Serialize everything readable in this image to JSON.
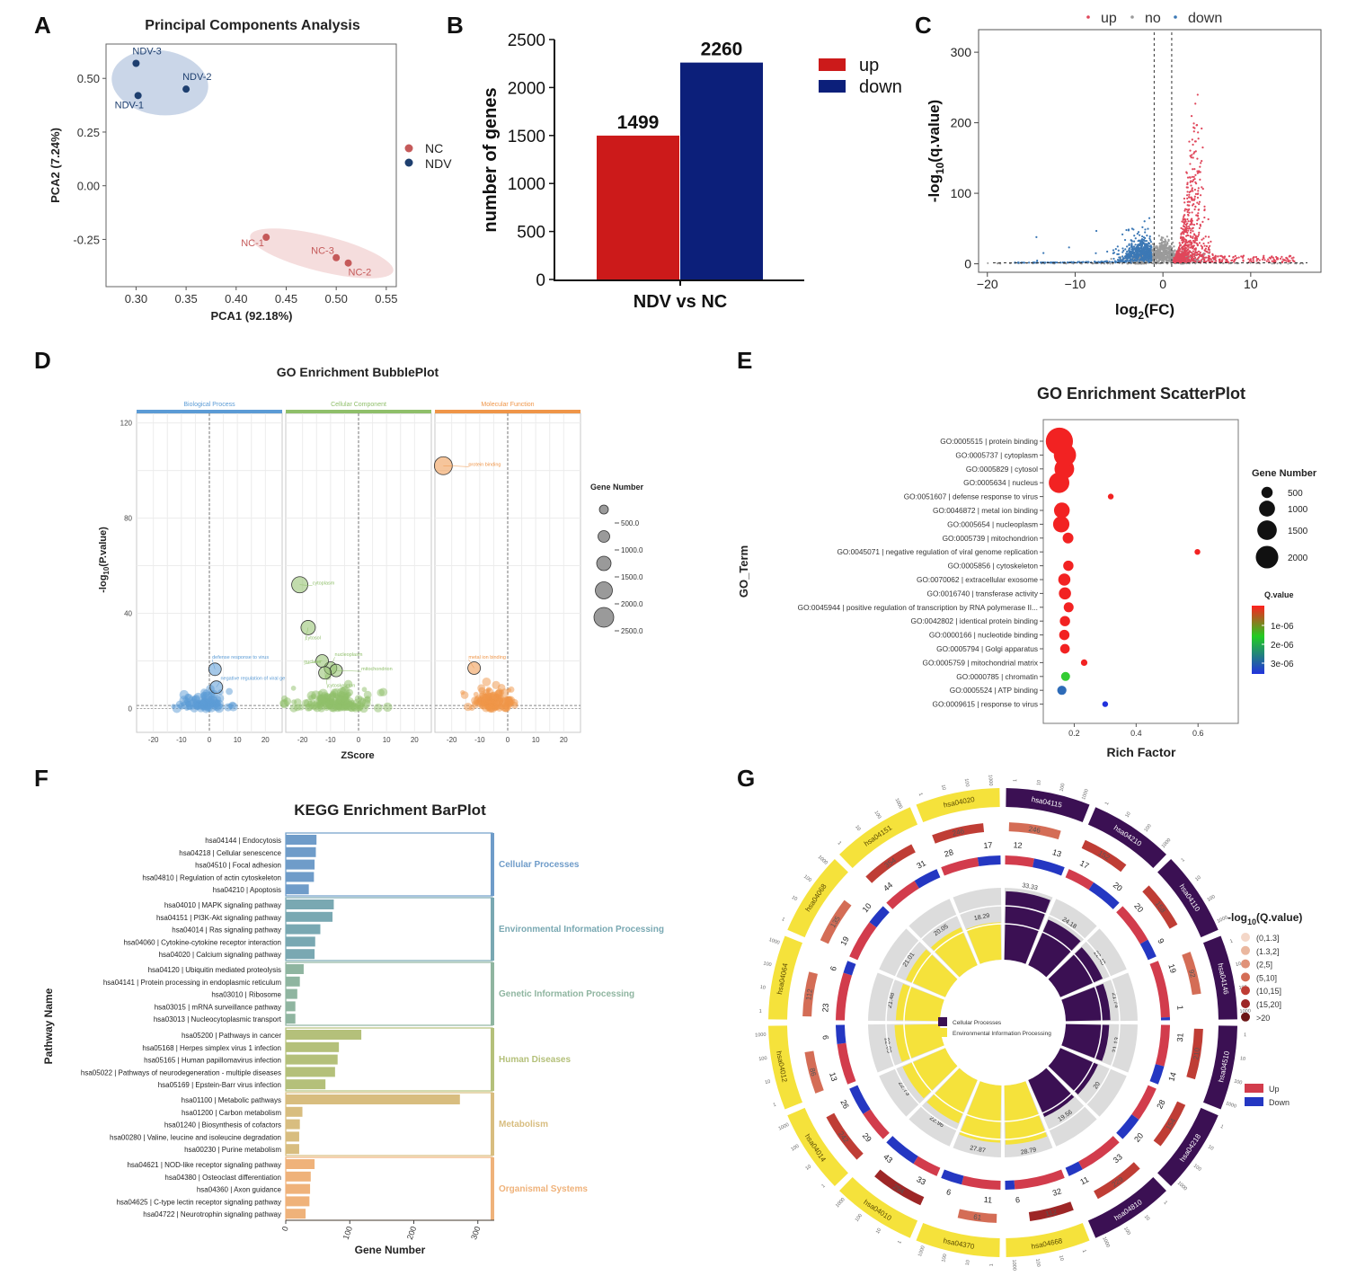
{
  "palette": {
    "up_red": "#cc1a1a",
    "down_blue": "#0c1f7a",
    "volc_red": "#e0475b",
    "volc_blue": "#3c78b5",
    "grey": "#9a9a9a",
    "pca_nc": "#c55a5a",
    "pca_ndv": "#1e3f6f",
    "bp_blue": "#5b9bd5",
    "cc_green": "#8fbf6a",
    "mf_orange": "#ef9548",
    "go_purple": "#3b1053",
    "go_yellow": "#f5e23b",
    "kegg": [
      "#6f9cc9",
      "#79a8b2",
      "#8fb5a0",
      "#b4c07a",
      "#d8bd7f",
      "#efb27a"
    ]
  },
  "panel_letters": [
    "A",
    "B",
    "C",
    "D",
    "E",
    "F",
    "G"
  ],
  "chart_data": [
    {
      "id": "A",
      "type": "scatter",
      "title": "Principal Components Analysis",
      "xlabel": "PCA1 (92.18%)",
      "ylabel": "PCA2 (7.24%)",
      "xlim": [
        0.27,
        0.56
      ],
      "ylim": [
        -0.47,
        0.66
      ],
      "xticks": [
        "0.30",
        "0.35",
        "0.40",
        "0.45",
        "0.50",
        "0.55"
      ],
      "xtick_values": [
        0.3,
        0.35,
        0.4,
        0.45,
        0.5,
        0.55
      ],
      "yticks": [
        "0.50",
        "0.25",
        "0.00",
        "-0.25"
      ],
      "ytick_values": [
        0.5,
        0.25,
        0.0,
        -0.25
      ],
      "legend": [
        {
          "label": "NC",
          "group": "NC"
        },
        {
          "label": "NDV",
          "group": "NDV"
        }
      ],
      "points": [
        {
          "label": "NDV-3",
          "x": 0.3,
          "y": 0.57,
          "group": "NDV"
        },
        {
          "label": "NDV-2",
          "x": 0.35,
          "y": 0.45,
          "group": "NDV"
        },
        {
          "label": "NDV-1",
          "x": 0.302,
          "y": 0.42,
          "group": "NDV"
        },
        {
          "label": "NC-1",
          "x": 0.43,
          "y": -0.24,
          "group": "NC"
        },
        {
          "label": "NC-3",
          "x": 0.5,
          "y": -0.335,
          "group": "NC"
        },
        {
          "label": "NC-2",
          "x": 0.512,
          "y": -0.36,
          "group": "NC"
        }
      ]
    },
    {
      "id": "B",
      "type": "bar",
      "categories": [
        "NDV vs NC"
      ],
      "series": [
        {
          "name": "up",
          "values": [
            1499
          ]
        },
        {
          "name": "down",
          "values": [
            2260
          ]
        }
      ],
      "data_labels": [
        "1499",
        "2260"
      ],
      "ylabel": "number of genes",
      "ylim": [
        0,
        2500
      ],
      "yticks": [
        "0",
        "500",
        "1000",
        "1500",
        "2000",
        "2500"
      ],
      "ytick_values": [
        0,
        500,
        1000,
        1500,
        2000,
        2500
      ]
    },
    {
      "id": "C",
      "type": "scatter",
      "legend": [
        {
          "label": "up",
          "group": "up"
        },
        {
          "label": "no",
          "group": "no"
        },
        {
          "label": "down",
          "group": "down"
        }
      ],
      "xlim": [
        -21,
        18
      ],
      "ylim": [
        -12,
        332
      ],
      "xticks": [
        "−20",
        "−10",
        "0",
        "10"
      ],
      "xtick_values": [
        -20,
        -10,
        0,
        10
      ],
      "yticks": [
        "0",
        "100",
        "200",
        "300"
      ],
      "ytick_values": [
        0,
        100,
        200,
        300
      ],
      "xlabel_main": "log",
      "xlabel_sub": "2",
      "xlabel_tail": "(FC)",
      "ylabel_main": "-log",
      "ylabel_sub": "10",
      "ylabel_tail": "(q.value)",
      "fc_cutoffs": [
        -1,
        1
      ],
      "q_cutoff": 1.3
    },
    {
      "id": "D",
      "type": "scatter",
      "title": "GO Enrichment BubblePlot",
      "xlabel": "ZScore",
      "ylabel_main": "-log",
      "ylabel_sub": "10",
      "ylabel_tail": "(P.value)",
      "xlim": [
        -26,
        26
      ],
      "ylim": [
        -10,
        124
      ],
      "xticks": [
        "-20",
        "-10",
        "0",
        "10",
        "20"
      ],
      "xtick_values": [
        -20,
        -10,
        0,
        10,
        20
      ],
      "yticks": [
        "0",
        "40",
        "80",
        "120"
      ],
      "ytick_values": [
        0,
        40,
        80,
        120
      ],
      "facets": [
        {
          "name": "Biological Process",
          "labels": [
            {
              "text": "defense response to virus",
              "x": 2,
              "y": 16.5,
              "tx": 1,
              "ty": 21
            },
            {
              "text": "negative regulation of viral genome replication",
              "x": 2.5,
              "y": 9,
              "tx": 4,
              "ty": 12
            }
          ]
        },
        {
          "name": "Cellular Component",
          "labels": [
            {
              "text": "cytoplasm",
              "x": -21,
              "y": 52,
              "tx": -16.5,
              "ty": 52
            },
            {
              "text": "cytosol",
              "x": -18,
              "y": 34,
              "tx": -19,
              "ty": 29
            },
            {
              "text": "nucleoplasm",
              "x": -10,
              "y": 17,
              "tx": -8.5,
              "ty": 22
            },
            {
              "text": "nucleus",
              "x": -13,
              "y": 20,
              "tx": -19.5,
              "ty": 19
            },
            {
              "text": "mitochondrion",
              "x": -8,
              "y": 16,
              "tx": 1,
              "ty": 16
            },
            {
              "text": "cytoskeleton",
              "x": -12,
              "y": 15,
              "tx": -11,
              "ty": 9
            }
          ]
        },
        {
          "name": "Molecular Function",
          "labels": [
            {
              "text": "protein binding",
              "x": -23,
              "y": 102,
              "tx": -14,
              "ty": 102
            },
            {
              "text": "metal ion binding",
              "x": -12,
              "y": 17,
              "tx": -14,
              "ty": 21
            }
          ]
        }
      ],
      "legend_title": "Gene Number",
      "legend_values": [
        "500.0",
        "1000.0",
        "1500.0",
        "2000.0",
        "2500.0"
      ]
    },
    {
      "id": "E",
      "type": "scatter",
      "title": "GO Enrichment ScatterPlot",
      "xlabel": "Rich Factor",
      "ylabel": "GO_Term",
      "xlim": [
        0.1,
        0.73
      ],
      "xticks": [
        "0.2",
        "0.4",
        "0.6"
      ],
      "xtick_values": [
        0.2,
        0.4,
        0.6
      ],
      "terms": [
        {
          "label": "GO:0005515 | protein binding",
          "x": 0.152,
          "genes": 2100,
          "q": 0.0
        },
        {
          "label": "GO:0005737 | cytoplasm",
          "x": 0.17,
          "genes": 1400,
          "q": 0.0
        },
        {
          "label": "GO:0005829 | cytosol",
          "x": 0.168,
          "genes": 1100,
          "q": 0.0
        },
        {
          "label": "GO:0005634 | nucleus",
          "x": 0.151,
          "genes": 1200,
          "q": 0.0
        },
        {
          "label": "GO:0051607 | defense response to virus",
          "x": 0.318,
          "genes": 60,
          "q": 0.0
        },
        {
          "label": "GO:0046872 | metal ion binding",
          "x": 0.16,
          "genes": 700,
          "q": 0.0
        },
        {
          "label": "GO:0005654 | nucleoplasm",
          "x": 0.158,
          "genes": 760,
          "q": 0.0
        },
        {
          "label": "GO:0005739 | mitochondrion",
          "x": 0.18,
          "genes": 330,
          "q": 0.0
        },
        {
          "label": "GO:0045071 | negative regulation of viral genome replication",
          "x": 0.598,
          "genes": 40,
          "q": 0.0
        },
        {
          "label": "GO:0005856 | cytoskeleton",
          "x": 0.181,
          "genes": 300,
          "q": 0.0
        },
        {
          "label": "GO:0070062 | extracellular exosome",
          "x": 0.168,
          "genes": 420,
          "q": 0.0
        },
        {
          "label": "GO:0016740 | transferase activity",
          "x": 0.17,
          "genes": 420,
          "q": 0.0
        },
        {
          "label": "GO:0045944 | positive regulation of transcription by RNA polymerase II...",
          "x": 0.182,
          "genes": 280,
          "q": 0.0
        },
        {
          "label": "GO:0042802 | identical protein binding",
          "x": 0.17,
          "genes": 300,
          "q": 0.0
        },
        {
          "label": "GO:0000166 | nucleotide binding",
          "x": 0.168,
          "genes": 300,
          "q": 0.0
        },
        {
          "label": "GO:0005794 | Golgi apparatus",
          "x": 0.17,
          "genes": 260,
          "q": 0.0
        },
        {
          "label": "GO:0005759 | mitochondrial matrix",
          "x": 0.232,
          "genes": 120,
          "q": 0.0
        },
        {
          "label": "GO:0000785 | chromatin",
          "x": 0.172,
          "genes": 230,
          "q": 1.9e-06
        },
        {
          "label": "GO:0005524 | ATP binding",
          "x": 0.16,
          "genes": 240,
          "q": 3.1e-06
        },
        {
          "label": "GO:0009615 | response to virus",
          "x": 0.3,
          "genes": 70,
          "q": 3.6e-06
        }
      ],
      "size_legend_title": "Gene Number",
      "size_legend": [
        "500",
        "1000",
        "1500",
        "2000"
      ],
      "size_legend_values": [
        500,
        1000,
        1500,
        2000
      ],
      "color_legend_title": "Q.value",
      "color_legend": [
        "1e-06",
        "2e-06",
        "3e-06"
      ]
    },
    {
      "id": "F",
      "type": "bar",
      "title": "KEGG Enrichment BarPlot",
      "xlabel": "Gene Number",
      "ylabel": "Pathway Name",
      "xlim": [
        0,
        320
      ],
      "xticks": [
        "0",
        "100",
        "200",
        "300"
      ],
      "xtick_values": [
        0,
        100,
        200,
        300
      ],
      "groups": [
        {
          "name": "Cellular Processes",
          "items": [
            {
              "label": "hsa04144 | Endocytosis",
              "value": 48
            },
            {
              "label": "hsa04218 | Cellular senescence",
              "value": 47
            },
            {
              "label": "hsa04510 | Focal adhesion",
              "value": 45
            },
            {
              "label": "hsa04810 | Regulation of actin cytoskeleton",
              "value": 44
            },
            {
              "label": "hsa04210 | Apoptosis",
              "value": 36
            }
          ]
        },
        {
          "name": "Environmental Information Processing",
          "items": [
            {
              "label": "hsa04010 | MAPK signaling pathway",
              "value": 75
            },
            {
              "label": "hsa04151 | PI3K-Akt signaling pathway",
              "value": 73
            },
            {
              "label": "hsa04014 | Ras signaling pathway",
              "value": 54
            },
            {
              "label": "hsa04060 | Cytokine-cytokine receptor interaction",
              "value": 46
            },
            {
              "label": "hsa04020 | Calcium signaling pathway",
              "value": 45
            }
          ]
        },
        {
          "name": "Genetic Information Processing",
          "items": [
            {
              "label": "hsa04120 | Ubiquitin mediated proteolysis",
              "value": 28
            },
            {
              "label": "hsa04141 | Protein processing in endoplasmic reticulum",
              "value": 22
            },
            {
              "label": "hsa03010 | Ribosome",
              "value": 18
            },
            {
              "label": "hsa03015 | mRNA surveillance pathway",
              "value": 15
            },
            {
              "label": "hsa03013 | Nucleocytoplasmic transport",
              "value": 15
            }
          ]
        },
        {
          "name": "Human Diseases",
          "items": [
            {
              "label": "hsa05200 | Pathways in cancer",
              "value": 118
            },
            {
              "label": "hsa05168 | Herpes simplex virus 1 infection",
              "value": 83
            },
            {
              "label": "hsa05165 | Human papillomavirus infection",
              "value": 81
            },
            {
              "label": "hsa05022 | Pathways of neurodegeneration - multiple diseases",
              "value": 77
            },
            {
              "label": "hsa05169 | Epstein-Barr virus infection",
              "value": 62
            }
          ]
        },
        {
          "name": "Metabolism",
          "items": [
            {
              "label": "hsa01100 | Metabolic pathways",
              "value": 272
            },
            {
              "label": "hsa01200 | Carbon metabolism",
              "value": 26
            },
            {
              "label": "hsa01240 | Biosynthesis of cofactors",
              "value": 22
            },
            {
              "label": "hsa00280 | Valine, leucine and isoleucine degradation",
              "value": 21
            },
            {
              "label": "hsa00230 | Purine metabolism",
              "value": 21
            }
          ]
        },
        {
          "name": "Organismal Systems",
          "items": [
            {
              "label": "hsa04621 | NOD-like receptor signaling pathway",
              "value": 45
            },
            {
              "label": "hsa04380 | Osteoclast differentiation",
              "value": 39
            },
            {
              "label": "hsa04360 | Axon guidance",
              "value": 38
            },
            {
              "label": "hsa04625 | C-type lectin receptor signaling pathway",
              "value": 37
            },
            {
              "label": "hsa04722 | Neurotrophin signaling pathway",
              "value": 31
            }
          ]
        }
      ]
    },
    {
      "id": "G",
      "type": "circos",
      "legend_title_main": "-log",
      "legend_title_sub": "10",
      "legend_title_tail": "(Q.value)",
      "q_legend": [
        "(0,1.3]",
        "(1.3,2]",
        "(2,5]",
        "(5,10]",
        "(10,15]",
        "(15,20]",
        ">20"
      ],
      "q_colors": [
        "#f4d7c8",
        "#eab79f",
        "#e09279",
        "#d46d56",
        "#bf3d35",
        "#9d2626",
        "#6c1515"
      ],
      "updown_legend": [
        "Up",
        "Down"
      ],
      "class_legend": [
        "Cellular Processes",
        "Environmental Information Processing"
      ],
      "outer_scale_labels": [
        "1",
        "10",
        "100",
        "1000"
      ],
      "sectors": [
        {
          "id": "hsa04115",
          "class": "cp",
          "count": 246,
          "up": 12,
          "down": 13,
          "rich": "33.33",
          "q": 3
        },
        {
          "id": "hsa04210",
          "class": "cp",
          "count": 152,
          "up": 17,
          "down": 20,
          "rich": "24.18",
          "q": 4
        },
        {
          "id": "hsa04110",
          "class": "cp",
          "count": 158,
          "up": 20,
          "down": 9,
          "rich": "22.48",
          "q": 4
        },
        {
          "id": "hsa04146",
          "class": "cp",
          "count": 92,
          "up": 19,
          "down": 1,
          "rich": "21.74",
          "q": 3
        },
        {
          "id": "hsa04510",
          "class": "cp",
          "count": 210,
          "up": 31,
          "down": 14,
          "rich": "21.13",
          "q": 4
        },
        {
          "id": "hsa04218",
          "class": "cp",
          "count": 154,
          "up": 28,
          "down": 20,
          "rich": "20",
          "q": 4
        },
        {
          "id": "hsa04810",
          "class": "cp",
          "count": 229,
          "up": 33,
          "down": 11,
          "rich": "19.56",
          "q": 4
        },
        {
          "id": "hsa04668",
          "class": "eip",
          "count": 112,
          "up": 32,
          "down": 6,
          "rich": "28.79",
          "q": 5
        },
        {
          "id": "hsa04370",
          "class": "eip",
          "count": 61,
          "up": 11,
          "down": 6,
          "rich": "27.87",
          "q": 3
        },
        {
          "id": "hsa04010",
          "class": "eip",
          "count": 294,
          "up": 33,
          "down": 43,
          "rich": "22.96",
          "q": 5
        },
        {
          "id": "hsa04014",
          "class": "eip",
          "count": 242,
          "up": 29,
          "down": 26,
          "rich": "22.73",
          "q": 4
        },
        {
          "id": "hsa04012",
          "class": "eip",
          "count": 86,
          "up": 13,
          "down": 6,
          "rich": "22.09",
          "q": 3
        },
        {
          "id": "hsa04064",
          "class": "eip",
          "count": 112,
          "up": 23,
          "down": 6,
          "rich": "21.48",
          "q": 3
        },
        {
          "id": "hsa04068",
          "class": "eip",
          "count": 135,
          "up": 19,
          "down": 10,
          "rich": "21.01",
          "q": 3
        },
        {
          "id": "hsa04151",
          "class": "eip",
          "count": 354,
          "up": 44,
          "down": 31,
          "rich": "20.05",
          "q": 4
        },
        {
          "id": "hsa04020",
          "class": "eip",
          "count": 246,
          "up": 28,
          "down": 17,
          "rich": "18.29",
          "q": 4
        }
      ]
    }
  ]
}
